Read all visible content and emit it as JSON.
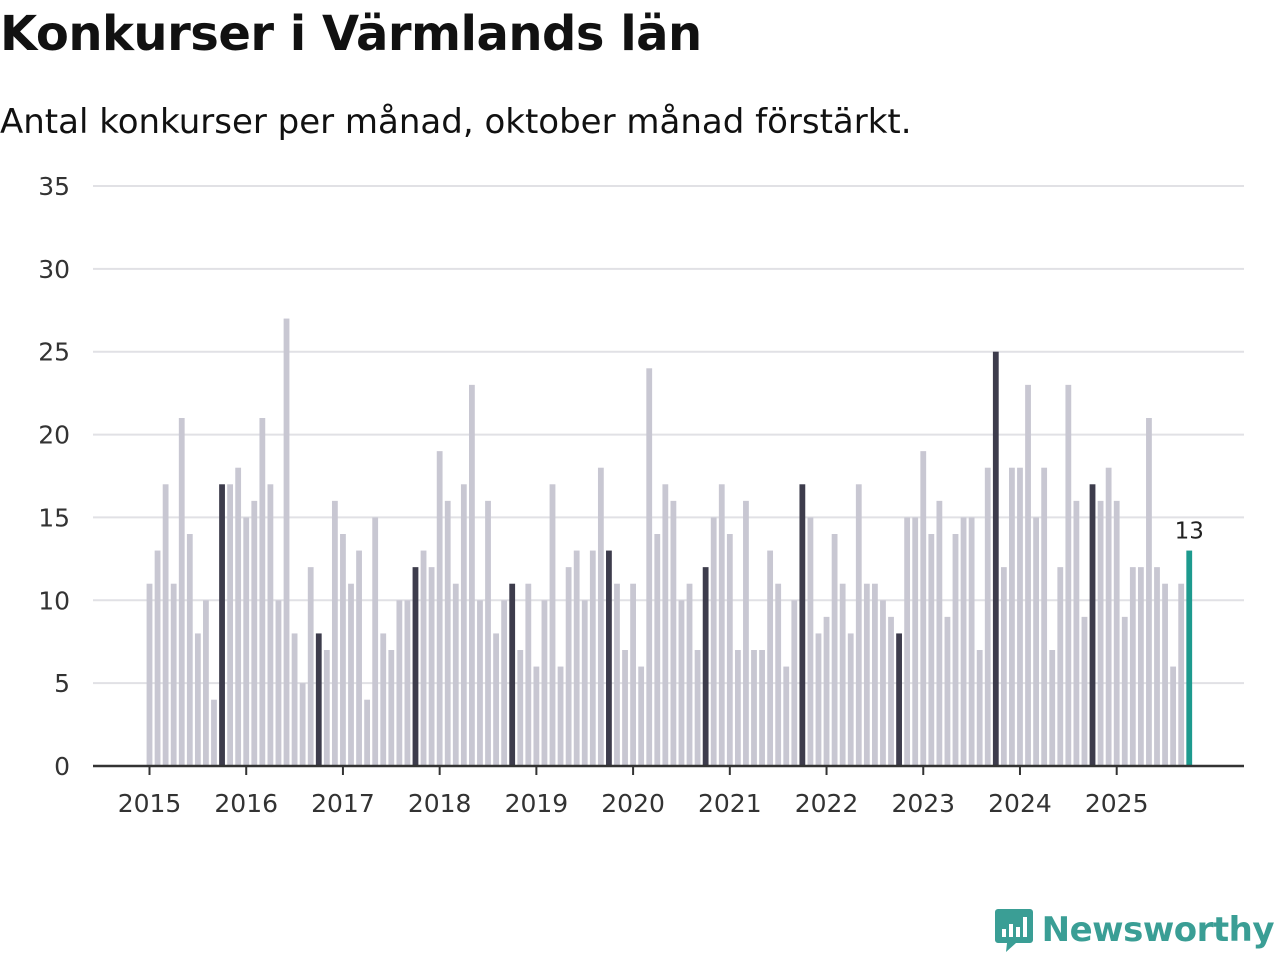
{
  "header": {
    "title": "Konkurser i Värmlands län",
    "subtitle": "Antal konkurser per månad, oktober månad förstärkt."
  },
  "brand": {
    "name": "Newsworthy",
    "color": "#3a9e95"
  },
  "colors": {
    "base": "#c8c7d2",
    "highlight": "#3d3c4c",
    "latest": "#1d9a8e",
    "grid": "#e1e1e5",
    "axis": "#333333"
  },
  "chart_data": {
    "type": "bar",
    "title": "Konkurser i Värmlands län",
    "subtitle": "Antal konkurser per månad, oktober månad förstärkt.",
    "xlabel": "",
    "ylabel": "",
    "ylim": [
      0,
      35
    ],
    "yticks": [
      0,
      5,
      10,
      15,
      20,
      25,
      30,
      35
    ],
    "grid": true,
    "start": {
      "year": 2015,
      "month": 1
    },
    "xtick_labels": [
      "2015",
      "2016",
      "2017",
      "2018",
      "2019",
      "2020",
      "2021",
      "2022",
      "2023",
      "2024",
      "2025"
    ],
    "highlight_month": 10,
    "latest_label": "13",
    "values": [
      11,
      13,
      17,
      11,
      21,
      14,
      8,
      10,
      4,
      17,
      17,
      18,
      15,
      16,
      21,
      17,
      10,
      27,
      8,
      5,
      12,
      8,
      7,
      16,
      14,
      11,
      13,
      4,
      15,
      8,
      7,
      10,
      10,
      12,
      13,
      12,
      19,
      16,
      11,
      17,
      23,
      10,
      16,
      8,
      10,
      11,
      7,
      11,
      6,
      10,
      17,
      6,
      12,
      13,
      10,
      13,
      18,
      13,
      11,
      7,
      11,
      6,
      24,
      14,
      17,
      16,
      10,
      11,
      7,
      12,
      15,
      17,
      14,
      7,
      16,
      7,
      7,
      13,
      11,
      6,
      10,
      17,
      15,
      8,
      9,
      14,
      11,
      8,
      17,
      11,
      11,
      10,
      9,
      8,
      15,
      15,
      19,
      14,
      16,
      9,
      14,
      15,
      15,
      7,
      18,
      25,
      12,
      18,
      18,
      23,
      15,
      18,
      7,
      12,
      23,
      16,
      9,
      17,
      16,
      18,
      16,
      9,
      12,
      12,
      21,
      12,
      11,
      6,
      11,
      13
    ]
  }
}
